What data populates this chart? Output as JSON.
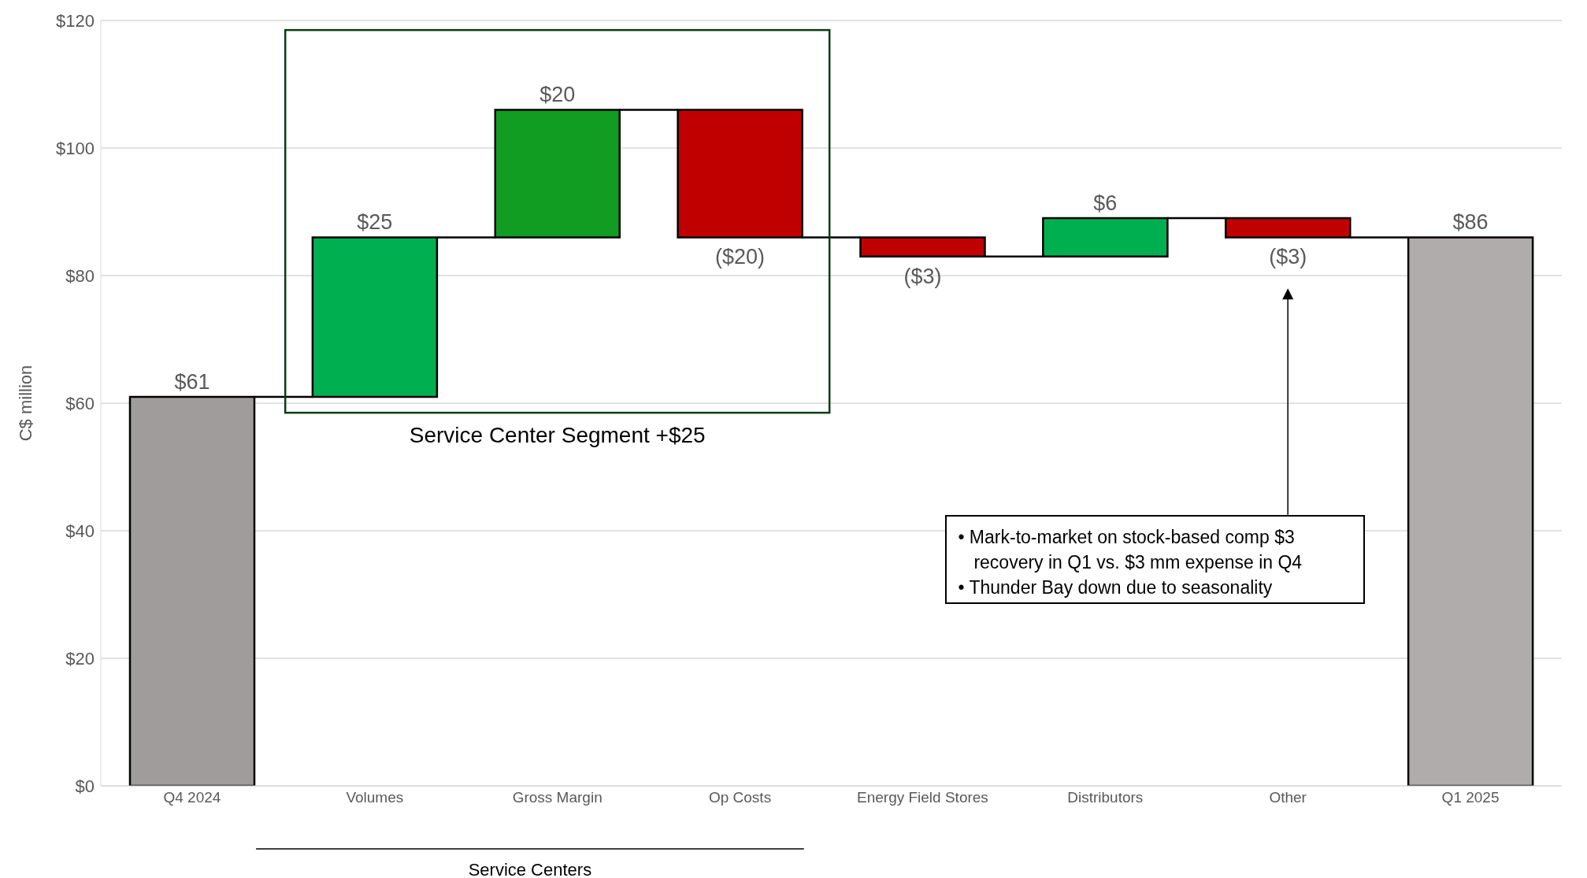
{
  "chart_data": {
    "type": "bar",
    "ylabel": "C$ million",
    "categories": [
      "Q4 2024",
      "Volumes",
      "Gross Margin",
      "Op Costs",
      "Energy Field Stores",
      "Distributors",
      "Other",
      "Q1 2025"
    ],
    "values": [
      61,
      25,
      20,
      -20,
      -3,
      6,
      -3,
      86
    ],
    "base": [
      0,
      61,
      86,
      106,
      86,
      83,
      89,
      0
    ],
    "colors": [
      "#a09c9b",
      "#00b050",
      "#119d22",
      "#c00000",
      "#c00000",
      "#00b050",
      "#c00000",
      "#b0acab"
    ],
    "value_labels": [
      "$61",
      "$25",
      "$20",
      "($20)",
      "($3)",
      "$6",
      "($3)",
      "$86"
    ],
    "ylim": [
      0,
      120
    ],
    "yticks": [
      {
        "value": 0,
        "label": "$0"
      },
      {
        "value": 20,
        "label": "$20"
      },
      {
        "value": 40,
        "label": "$40"
      },
      {
        "value": 60,
        "label": "$60"
      },
      {
        "value": 80,
        "label": "$80"
      },
      {
        "value": 100,
        "label": "$100"
      },
      {
        "value": 120,
        "label": "$120"
      }
    ],
    "grid": "y",
    "annotations": [
      "Service Center Segment +$25",
      "• Mark-to-market on stock-based comp $3 recovery in Q1 vs. $3 mm expense in Q4",
      "• Thunder Bay down due to seasonality",
      "Service Centers"
    ]
  }
}
